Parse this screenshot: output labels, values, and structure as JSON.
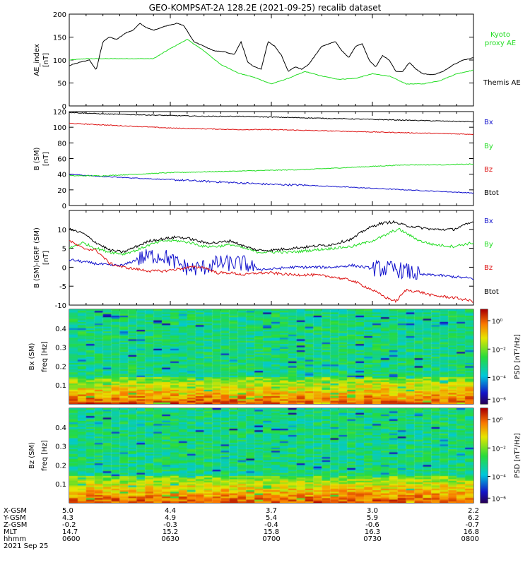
{
  "title": "GEO-KOMPSAT-2A 128.2E (2021-09-25) recalib dataset",
  "colors": {
    "black": "#000000",
    "green": "#22dd22",
    "red": "#dd1111",
    "blue": "#1111cc"
  },
  "chart_data": [
    {
      "type": "line",
      "panel": "ae",
      "ylabel": "AE_index",
      "yunit": "[nT]",
      "ylim": [
        0,
        200
      ],
      "yticks": [
        "0",
        "50",
        "100",
        "150",
        "200"
      ],
      "x_minutes_range": [
        0,
        120
      ],
      "series": [
        {
          "name": "Kyoto proxy AE",
          "label_lines": [
            "Kyoto",
            "proxy AE"
          ],
          "color": "#22dd22",
          "x": [
            0,
            5,
            10,
            20,
            25,
            30,
            35,
            40,
            45,
            48,
            50,
            55,
            60,
            65,
            70,
            75,
            80,
            85,
            90,
            95,
            100,
            105,
            110,
            115,
            120
          ],
          "y": [
            100,
            103,
            103,
            103,
            103,
            125,
            145,
            120,
            90,
            80,
            72,
            62,
            48,
            60,
            75,
            65,
            58,
            60,
            70,
            65,
            48,
            48,
            55,
            70,
            78
          ]
        },
        {
          "name": "Themis AE",
          "label_lines": [
            "Themis AE"
          ],
          "color": "#000000",
          "x": [
            0,
            3,
            6,
            8,
            10,
            12,
            14,
            17,
            19,
            21,
            23,
            25,
            27,
            29,
            32,
            34,
            37,
            40,
            43,
            46,
            49,
            51,
            53,
            55,
            57,
            59,
            61,
            63,
            65,
            67,
            69,
            71,
            73,
            75,
            77,
            79,
            81,
            83,
            85,
            87,
            89,
            91,
            93,
            95,
            97,
            99,
            101,
            103,
            105,
            108,
            111,
            114,
            117,
            120
          ],
          "y": [
            88,
            95,
            100,
            78,
            140,
            150,
            145,
            160,
            165,
            180,
            170,
            165,
            170,
            175,
            180,
            175,
            140,
            130,
            120,
            118,
            112,
            140,
            95,
            85,
            80,
            140,
            130,
            110,
            75,
            85,
            80,
            90,
            110,
            130,
            135,
            140,
            120,
            105,
            130,
            135,
            100,
            85,
            110,
            100,
            75,
            75,
            95,
            80,
            70,
            68,
            75,
            90,
            100,
            105
          ]
        }
      ]
    },
    {
      "type": "line",
      "panel": "b",
      "ylabel": "B (SM)",
      "yunit": "[nT]",
      "ylim": [
        0,
        120
      ],
      "yticks": [
        "0",
        "20",
        "40",
        "60",
        "80",
        "100",
        "120"
      ],
      "x_minutes_range": [
        0,
        120
      ],
      "series": [
        {
          "name": "Bx",
          "color": "#1111cc",
          "x": [
            0,
            10,
            20,
            30,
            40,
            50,
            60,
            70,
            80,
            90,
            100,
            110,
            120
          ],
          "y": [
            40,
            37,
            35,
            33,
            31,
            29,
            27,
            26,
            24,
            22,
            20,
            18,
            16
          ]
        },
        {
          "name": "By",
          "color": "#22dd22",
          "x": [
            0,
            10,
            20,
            30,
            40,
            50,
            60,
            70,
            80,
            90,
            100,
            110,
            120
          ],
          "y": [
            38,
            38,
            40,
            42,
            43,
            44,
            45,
            46,
            48,
            50,
            52,
            52,
            53
          ]
        },
        {
          "name": "Bz",
          "color": "#dd1111",
          "x": [
            0,
            10,
            20,
            30,
            40,
            50,
            60,
            70,
            80,
            90,
            100,
            110,
            120
          ],
          "y": [
            105,
            103,
            101,
            99,
            98,
            97,
            97,
            96,
            95,
            94,
            93,
            92,
            91
          ]
        },
        {
          "name": "Btot",
          "color": "#000000",
          "x": [
            0,
            10,
            20,
            30,
            40,
            50,
            60,
            70,
            80,
            90,
            100,
            110,
            120
          ],
          "y": [
            119,
            117,
            116,
            115,
            114,
            114,
            113,
            112,
            111,
            110,
            109,
            108,
            107
          ]
        }
      ]
    },
    {
      "type": "line",
      "panel": "db",
      "ylabel": "B (SM)-IGRF (SM)",
      "yunit": "[nT]",
      "ylim": [
        -10,
        15
      ],
      "yticks": [
        "-10",
        "-5",
        "0",
        "5",
        "10"
      ],
      "x_minutes_range": [
        0,
        120
      ],
      "series": [
        {
          "name": "Bx",
          "color": "#1111cc",
          "x": [
            0,
            6,
            12,
            16,
            20,
            24,
            28,
            32,
            36,
            40,
            44,
            48,
            52,
            56,
            60,
            66,
            72,
            78,
            84,
            90,
            96,
            100,
            104,
            108,
            114,
            120
          ],
          "y": [
            2,
            1.2,
            0.5,
            0.5,
            2,
            3,
            3,
            1,
            -0.5,
            0,
            1,
            1,
            1,
            -0.5,
            -0.5,
            0,
            0,
            0,
            0.5,
            -0.3,
            -0.5,
            -1,
            -2,
            -2,
            -2.5,
            -3
          ]
        },
        {
          "name": "By",
          "color": "#22dd22",
          "x": [
            0,
            4,
            8,
            12,
            16,
            20,
            24,
            28,
            32,
            36,
            40,
            44,
            48,
            52,
            56,
            60,
            66,
            72,
            78,
            84,
            90,
            94,
            96,
            98,
            100,
            104,
            108,
            114,
            120
          ],
          "y": [
            5,
            6.5,
            5,
            4,
            3.5,
            4.5,
            6,
            7,
            7,
            6.5,
            5.5,
            5.5,
            6,
            5,
            4,
            4,
            4,
            4.5,
            5,
            5.5,
            7,
            8.5,
            9.5,
            10,
            9,
            7,
            6,
            5.5,
            6.5
          ]
        },
        {
          "name": "Bz",
          "color": "#dd1111",
          "x": [
            0,
            4,
            8,
            12,
            16,
            20,
            24,
            28,
            32,
            36,
            40,
            44,
            48,
            52,
            56,
            60,
            66,
            72,
            78,
            84,
            90,
            94,
            97,
            100,
            104,
            108,
            114,
            120
          ],
          "y": [
            7,
            5,
            4.5,
            1,
            0,
            -0.5,
            -1,
            -1,
            -0.5,
            0,
            0,
            -1.5,
            -1.5,
            -2,
            -1.5,
            -1.5,
            -2,
            -2,
            -2.5,
            -3.5,
            -6,
            -8,
            -9,
            -6,
            -6.5,
            -7.5,
            -8,
            -9
          ]
        },
        {
          "name": "Btot",
          "color": "#000000",
          "x": [
            0,
            4,
            8,
            12,
            16,
            20,
            24,
            28,
            32,
            36,
            40,
            44,
            48,
            52,
            56,
            60,
            66,
            72,
            78,
            84,
            88,
            92,
            96,
            100,
            104,
            108,
            114,
            120
          ],
          "y": [
            10,
            9,
            6.5,
            4.5,
            4,
            5.5,
            7,
            7.5,
            8,
            7.5,
            6.5,
            6.5,
            7,
            5.5,
            4.5,
            4.5,
            5,
            5.5,
            6,
            7.5,
            10,
            11.5,
            12,
            11,
            10.5,
            10,
            10,
            12
          ]
        }
      ]
    },
    {
      "type": "heatmap",
      "panel": "bx-spec",
      "ylabel": "Bx (SM)",
      "yunit_label": "freq [Hz]",
      "ylim": [
        0,
        0.5
      ],
      "yticks": [
        "0.1",
        "0.2",
        "0.3",
        "0.4"
      ],
      "colorbar": {
        "label": "PSD [nT²/Hz]",
        "ticks": [
          "10⁰",
          "10⁻²",
          "10⁻⁴",
          "10⁻⁶"
        ]
      }
    },
    {
      "type": "heatmap",
      "panel": "bz-spec",
      "ylabel": "Bz (SM)",
      "yunit_label": "freq [Hz]",
      "ylim": [
        0,
        0.5
      ],
      "yticks": [
        "0.1",
        "0.2",
        "0.3",
        "0.4"
      ],
      "colorbar": {
        "label": "PSD [nT²/Hz]",
        "ticks": [
          "10⁰",
          "10⁻²",
          "10⁻⁴",
          "10⁻⁶"
        ]
      }
    }
  ],
  "xaxis": {
    "row_labels": [
      "X-GSM",
      "Y-GSM",
      "Z-GSM",
      "MLT",
      "hhmm"
    ],
    "ticks": [
      {
        "values": [
          "5.0",
          "4.3",
          "-0.2",
          "14.7",
          "0600"
        ]
      },
      {
        "values": [
          "4.4",
          "4.9",
          "-0.3",
          "15.2",
          "0630"
        ]
      },
      {
        "values": [
          "3.7",
          "5.4",
          "-0.4",
          "15.8",
          "0700"
        ]
      },
      {
        "values": [
          "3.0",
          "5.9",
          "-0.6",
          "16.3",
          "0730"
        ]
      },
      {
        "values": [
          "2.2",
          "6.2",
          "-0.7",
          "16.8",
          "0800"
        ]
      }
    ],
    "date": "2021 Sep 25"
  }
}
